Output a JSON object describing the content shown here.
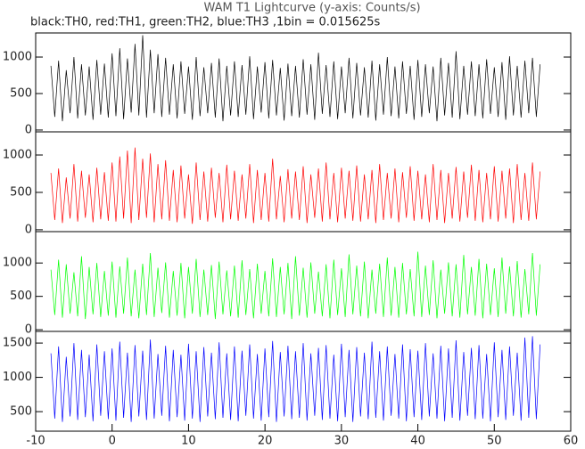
{
  "chart_data": [
    {
      "type": "line",
      "title": "WAM T1 Lightcurve (y-axis: Counts/s)",
      "subtitle": "black:TH0, red:TH1, green:TH2, blue:TH3 ,1bin = 0.015625s",
      "xlim": [
        -10,
        60
      ],
      "ylim": [
        -25,
        1330
      ],
      "yticks": [
        0,
        500,
        1000
      ],
      "x": [
        -8,
        -7.5,
        -7,
        -6.5,
        -6,
        -5.5,
        -5,
        -4.5,
        -4,
        -3.5,
        -3,
        -2.5,
        -2,
        -1.5,
        -1,
        -0.5,
        0,
        0.5,
        1,
        1.5,
        2,
        2.5,
        3,
        3.5,
        4,
        4.5,
        5,
        5.5,
        6,
        6.5,
        7,
        7.5,
        8,
        8.5,
        9,
        9.5,
        10,
        10.5,
        11,
        11.5,
        12,
        12.5,
        13,
        13.5,
        14,
        14.5,
        15,
        15.5,
        16,
        16.5,
        17,
        17.5,
        18,
        18.5,
        19,
        19.5,
        20,
        20.5,
        21,
        21.5,
        22,
        22.5,
        23,
        23.5,
        24,
        24.5,
        25,
        25.5,
        26,
        26.5,
        27,
        27.5,
        28,
        28.5,
        29,
        29.5,
        30,
        30.5,
        31,
        31.5,
        32,
        32.5,
        33,
        33.5,
        34,
        34.5,
        35,
        35.5,
        36,
        36.5,
        37,
        37.5,
        38,
        38.5,
        39,
        39.5,
        40,
        40.5,
        41,
        41.5,
        42,
        42.5,
        43,
        43.5,
        44,
        44.5,
        45,
        45.5,
        46,
        46.5,
        47,
        47.5,
        48,
        48.5,
        49,
        49.5,
        50,
        50.5,
        51,
        51.5,
        52,
        52.5,
        53,
        53.5,
        54,
        54.5,
        55,
        55.5,
        56
      ],
      "series": [
        {
          "color": "#000000",
          "values": [
            880,
            180,
            950,
            120,
            820,
            230,
            1000,
            160,
            900,
            200,
            870,
            140,
            960,
            210,
            910,
            170,
            1050,
            190,
            1120,
            150,
            980,
            240,
            1180,
            200,
            1300,
            170,
            1100,
            230,
            1040,
            180,
            990,
            210,
            900,
            160,
            940,
            220,
            870,
            140,
            1000,
            190,
            860,
            230,
            920,
            170,
            980,
            120,
            880,
            200,
            940,
            180,
            890,
            210,
            1010,
            150,
            870,
            240,
            930,
            160,
            960,
            200,
            850,
            130,
            910,
            190,
            880,
            170,
            970,
            210,
            900,
            140,
            1060,
            220,
            890,
            180,
            940,
            150,
            870,
            230,
            990,
            160,
            920,
            200,
            860,
            170,
            950,
            130,
            900,
            210,
            1000,
            190,
            870,
            160,
            940,
            220,
            880,
            140,
            960,
            180,
            900,
            230,
            870,
            120,
            990,
            200,
            920,
            170,
            1080,
            150,
            880,
            210,
            940,
            190,
            900,
            160,
            970,
            220,
            860,
            180,
            930,
            140,
            1010,
            200,
            880,
            170,
            950,
            230,
            990,
            180,
            900
          ]
        }
      ]
    },
    {
      "type": "line",
      "xlim": [
        -10,
        60
      ],
      "ylim": [
        -25,
        1310
      ],
      "yticks": [
        0,
        500,
        1000
      ],
      "x": [
        -8,
        -7.5,
        -7,
        -6.5,
        -6,
        -5.5,
        -5,
        -4.5,
        -4,
        -3.5,
        -3,
        -2.5,
        -2,
        -1.5,
        -1,
        -0.5,
        0,
        0.5,
        1,
        1.5,
        2,
        2.5,
        3,
        3.5,
        4,
        4.5,
        5,
        5.5,
        6,
        6.5,
        7,
        7.5,
        8,
        8.5,
        9,
        9.5,
        10,
        10.5,
        11,
        11.5,
        12,
        12.5,
        13,
        13.5,
        14,
        14.5,
        15,
        15.5,
        16,
        16.5,
        17,
        17.5,
        18,
        18.5,
        19,
        19.5,
        20,
        20.5,
        21,
        21.5,
        22,
        22.5,
        23,
        23.5,
        24,
        24.5,
        25,
        25.5,
        26,
        26.5,
        27,
        27.5,
        28,
        28.5,
        29,
        29.5,
        30,
        30.5,
        31,
        31.5,
        32,
        32.5,
        33,
        33.5,
        34,
        34.5,
        35,
        35.5,
        36,
        36.5,
        37,
        37.5,
        38,
        38.5,
        39,
        39.5,
        40,
        40.5,
        41,
        41.5,
        42,
        42.5,
        43,
        43.5,
        44,
        44.5,
        45,
        45.5,
        46,
        46.5,
        47,
        47.5,
        48,
        48.5,
        49,
        49.5,
        50,
        50.5,
        51,
        51.5,
        52,
        52.5,
        53,
        53.5,
        54,
        54.5,
        55,
        55.5,
        56
      ],
      "series": [
        {
          "color": "#ff0000",
          "values": [
            760,
            130,
            820,
            90,
            700,
            150,
            880,
            110,
            790,
            160,
            740,
            100,
            830,
            140,
            770,
            120,
            900,
            110,
            980,
            150,
            1060,
            90,
            1100,
            130,
            950,
            160,
            1020,
            100,
            880,
            140,
            930,
            120,
            800,
            100,
            860,
            150,
            740,
            80,
            900,
            130,
            780,
            110,
            830,
            160,
            760,
            100,
            870,
            140,
            790,
            120,
            740,
            150,
            880,
            90,
            800,
            130,
            760,
            110,
            950,
            140,
            720,
            100,
            810,
            150,
            780,
            130,
            850,
            90,
            740,
            160,
            820,
            110,
            900,
            140,
            760,
            100,
            830,
            150,
            790,
            120,
            860,
            110,
            740,
            140,
            800,
            90,
            880,
            130,
            760,
            150,
            820,
            100,
            770,
            160,
            850,
            120,
            790,
            140,
            740,
            100,
            880,
            130,
            800,
            90,
            760,
            150,
            840,
            110,
            780,
            160,
            870,
            120,
            800,
            100,
            760,
            140,
            850,
            110,
            790,
            150,
            820,
            90,
            880,
            130,
            760,
            120,
            900,
            140,
            780
          ]
        }
      ]
    },
    {
      "type": "line",
      "xlim": [
        -10,
        60
      ],
      "ylim": [
        -25,
        1470
      ],
      "yticks": [
        0,
        500,
        1000
      ],
      "x": [
        -8,
        -7.5,
        -7,
        -6.5,
        -6,
        -5.5,
        -5,
        -4.5,
        -4,
        -3.5,
        -3,
        -2.5,
        -2,
        -1.5,
        -1,
        -0.5,
        0,
        0.5,
        1,
        1.5,
        2,
        2.5,
        3,
        3.5,
        4,
        4.5,
        5,
        5.5,
        6,
        6.5,
        7,
        7.5,
        8,
        8.5,
        9,
        9.5,
        10,
        10.5,
        11,
        11.5,
        12,
        12.5,
        13,
        13.5,
        14,
        14.5,
        15,
        15.5,
        16,
        16.5,
        17,
        17.5,
        18,
        18.5,
        19,
        19.5,
        20,
        20.5,
        21,
        21.5,
        22,
        22.5,
        23,
        23.5,
        24,
        24.5,
        25,
        25.5,
        26,
        26.5,
        27,
        27.5,
        28,
        28.5,
        29,
        29.5,
        30,
        30.5,
        31,
        31.5,
        32,
        32.5,
        33,
        33.5,
        34,
        34.5,
        35,
        35.5,
        36,
        36.5,
        37,
        37.5,
        38,
        38.5,
        39,
        39.5,
        40,
        40.5,
        41,
        41.5,
        42,
        42.5,
        43,
        43.5,
        44,
        44.5,
        45,
        45.5,
        46,
        46.5,
        47,
        47.5,
        48,
        48.5,
        49,
        49.5,
        50,
        50.5,
        51,
        51.5,
        52,
        52.5,
        53,
        53.5,
        54,
        54.5,
        55,
        55.5,
        56
      ],
      "series": [
        {
          "color": "#00ff00",
          "values": [
            900,
            220,
            1050,
            180,
            980,
            240,
            860,
            200,
            1100,
            160,
            940,
            230,
            1000,
            190,
            880,
            210,
            1020,
            180,
            950,
            240,
            1080,
            200,
            900,
            170,
            990,
            220,
            1150,
            190,
            930,
            250,
            1010,
            180,
            880,
            210,
            1000,
            170,
            940,
            240,
            1060,
            190,
            900,
            220,
            970,
            160,
            1020,
            230,
            890,
            200,
            960,
            180,
            1040,
            220,
            910,
            170,
            990,
            240,
            880,
            200,
            1070,
            190,
            940,
            230,
            1000,
            160,
            1100,
            210,
            930,
            180,
            1010,
            240,
            870,
            200,
            980,
            170,
            1050,
            220,
            920,
            190,
            1130,
            230,
            960,
            200,
            1020,
            170,
            900,
            240,
            990,
            190,
            1080,
            210,
            940,
            180,
            1000,
            230,
            910,
            200,
            1170,
            190,
            960,
            220,
            1040,
            170,
            900,
            240,
            1010,
            200,
            980,
            180,
            1120,
            230,
            940,
            210,
            1060,
            170,
            990,
            220,
            920,
            190,
            1080,
            240,
            950,
            200,
            1030,
            180,
            910,
            230,
            1150,
            210,
            980
          ]
        }
      ]
    },
    {
      "type": "line",
      "xlim": [
        -10,
        60
      ],
      "ylim": [
        215,
        1670
      ],
      "yticks": [
        500,
        1000,
        1500
      ],
      "xticks": [
        -10,
        0,
        10,
        20,
        30,
        40,
        50,
        60
      ],
      "x": [
        -8,
        -7.5,
        -7,
        -6.5,
        -6,
        -5.5,
        -5,
        -4.5,
        -4,
        -3.5,
        -3,
        -2.5,
        -2,
        -1.5,
        -1,
        -0.5,
        0,
        0.5,
        1,
        1.5,
        2,
        2.5,
        3,
        3.5,
        4,
        4.5,
        5,
        5.5,
        6,
        6.5,
        7,
        7.5,
        8,
        8.5,
        9,
        9.5,
        10,
        10.5,
        11,
        11.5,
        12,
        12.5,
        13,
        13.5,
        14,
        14.5,
        15,
        15.5,
        16,
        16.5,
        17,
        17.5,
        18,
        18.5,
        19,
        19.5,
        20,
        20.5,
        21,
        21.5,
        22,
        22.5,
        23,
        23.5,
        24,
        24.5,
        25,
        25.5,
        26,
        26.5,
        27,
        27.5,
        28,
        28.5,
        29,
        29.5,
        30,
        30.5,
        31,
        31.5,
        32,
        32.5,
        33,
        33.5,
        34,
        34.5,
        35,
        35.5,
        36,
        36.5,
        37,
        37.5,
        38,
        38.5,
        39,
        39.5,
        40,
        40.5,
        41,
        41.5,
        42,
        42.5,
        43,
        43.5,
        44,
        44.5,
        45,
        45.5,
        46,
        46.5,
        47,
        47.5,
        48,
        48.5,
        49,
        49.5,
        50,
        50.5,
        51,
        51.5,
        52,
        52.5,
        53,
        53.5,
        54,
        54.5,
        55,
        55.5,
        56
      ],
      "series": [
        {
          "color": "#0000ff",
          "values": [
            1350,
            400,
            1450,
            350,
            1300,
            430,
            1500,
            380,
            1400,
            420,
            1330,
            360,
            1480,
            440,
            1380,
            390,
            1420,
            370,
            1520,
            410,
            1360,
            350,
            1470,
            430,
            1390,
            380,
            1550,
            400,
            1340,
            440,
            1460,
            360,
            1400,
            420,
            1330,
            370,
            1490,
            400,
            1380,
            350,
            1440,
            430,
            1360,
            390,
            1510,
            410,
            1350,
            380,
            1450,
            360,
            1390,
            440,
            1480,
            400,
            1340,
            370,
            1420,
            420,
            1530,
            350,
            1370,
            430,
            1460,
            390,
            1380,
            410,
            1500,
            370,
            1350,
            440,
            1430,
            380,
            1470,
            400,
            1330,
            360,
            1490,
            420,
            1400,
            350,
            1440,
            430,
            1360,
            390,
            1520,
            410,
            1380,
            370,
            1450,
            440,
            1340,
            400,
            1480,
            360,
            1410,
            420,
            1390,
            380,
            1500,
            430,
            1350,
            400,
            1460,
            360,
            1420,
            410,
            1540,
            370,
            1370,
            440,
            1430,
            390,
            1470,
            400,
            1340,
            360,
            1510,
            420,
            1400,
            380,
            1450,
            440,
            1360,
            370,
            1580,
            410,
            1600,
            390,
            1480
          ]
        }
      ]
    }
  ]
}
